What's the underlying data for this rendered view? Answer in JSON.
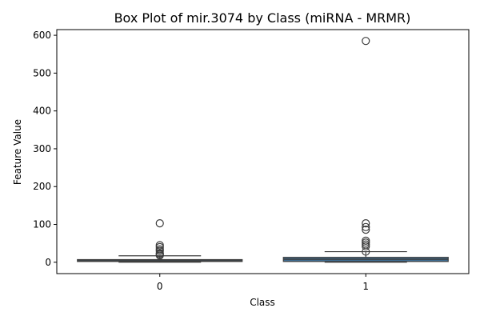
{
  "chart_data": {
    "type": "box",
    "title": "Box Plot of mir.3074 by Class (miRNA - MRMR)",
    "xlabel": "Class",
    "ylabel": "Feature Value",
    "ylim": [
      -30,
      615
    ],
    "yticks": [
      0,
      100,
      200,
      300,
      400,
      500,
      600
    ],
    "grid": false,
    "legend": "none",
    "box_color": "#3f6f95",
    "line_color": "#3d3d3d",
    "categories": [
      "0",
      "1"
    ],
    "boxes": [
      {
        "class": "0",
        "q1": 2,
        "median": 4,
        "q3": 7,
        "whisker_low": 0,
        "whisker_high": 17,
        "outliers": [
          103,
          45,
          40,
          34,
          30,
          24,
          21,
          18
        ]
      },
      {
        "class": "1",
        "q1": 2,
        "median": 8,
        "q3": 13,
        "whisker_low": 0,
        "whisker_high": 28,
        "outliers": [
          585,
          103,
          93,
          86,
          57,
          52,
          47,
          42,
          28
        ]
      }
    ]
  }
}
